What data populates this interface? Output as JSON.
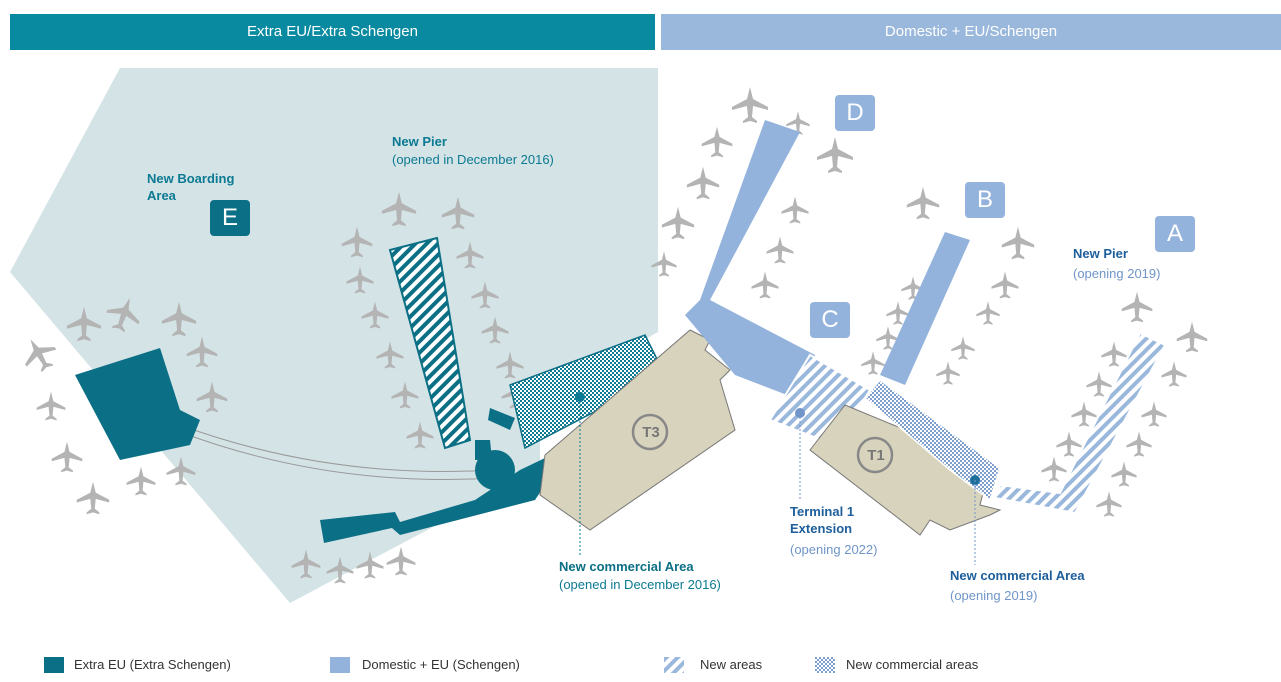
{
  "header": {
    "left": "Extra EU/Extra Schengen",
    "right": "Domestic + EU/Schengen"
  },
  "labels": {
    "boarding_area": "New Boarding Area",
    "e": "E",
    "pier_title": "New Pier",
    "pier_note": "(opened in December 2016)",
    "d": "D",
    "b": "B",
    "c": "C",
    "a": "A",
    "pier_a_title": "New Pier",
    "pier_a_note": "(opening 2019)",
    "t3": "T3",
    "t1": "T1",
    "t1_ext_title": "Terminal 1 Extension",
    "t1_ext_note": "(opening 2022)",
    "comm_t3_title": "New commercial Area",
    "comm_t3_note": "(opened in December 2016)",
    "comm_t1_title": "New commercial Area",
    "comm_t1_note": "(opening 2019)"
  },
  "legend": [
    "Extra EU (Extra Schengen)",
    "Domestic + EU (Schengen)",
    "New areas",
    "New commercial areas"
  ]
}
